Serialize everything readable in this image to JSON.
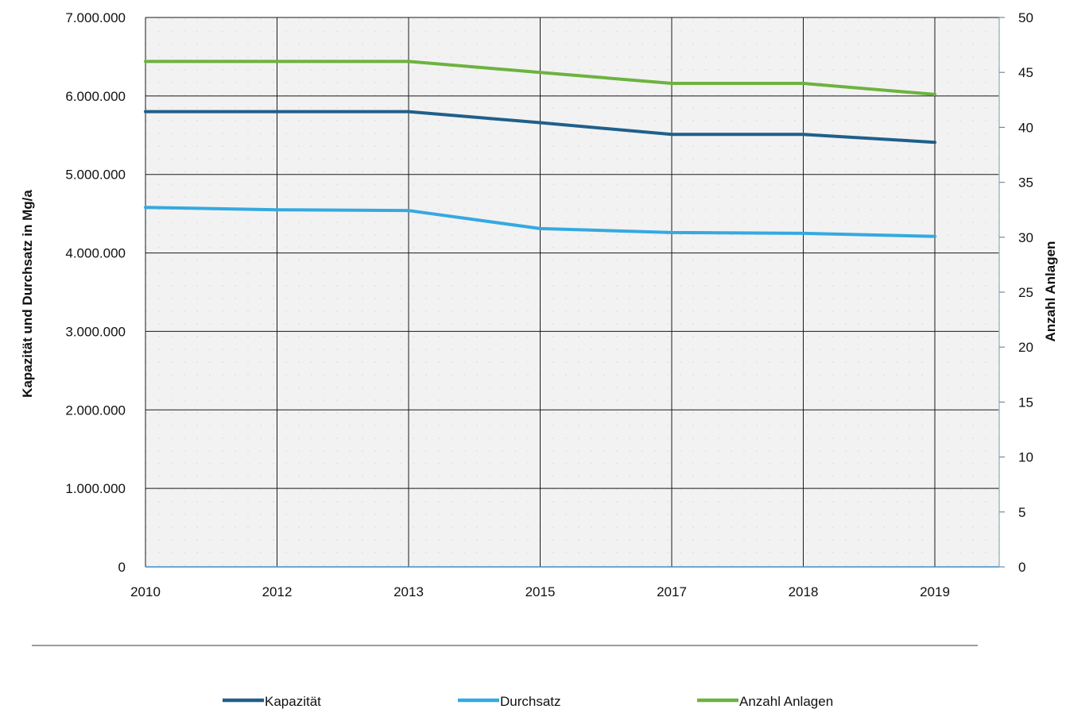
{
  "chart_data": {
    "type": "line",
    "categories": [
      "2010",
      "2012",
      "2013",
      "2015",
      "2017",
      "2018",
      "2019"
    ],
    "y_left": {
      "label": "Kapazität und Durchsatz in Mg/a",
      "range": [
        0,
        7000000
      ],
      "ticks": [
        0,
        1000000,
        2000000,
        3000000,
        4000000,
        5000000,
        6000000,
        7000000
      ],
      "tick_labels": [
        "0",
        "1.000.000",
        "2.000.000",
        "3.000.000",
        "4.000.000",
        "5.000.000",
        "6.000.000",
        "7.000.000"
      ]
    },
    "y_right": {
      "label": "Anzahl Anlagen",
      "range": [
        0,
        50
      ],
      "ticks": [
        0,
        5,
        10,
        15,
        20,
        25,
        30,
        35,
        40,
        45,
        50
      ],
      "tick_labels": [
        "0",
        "5",
        "10",
        "15",
        "20",
        "25",
        "30",
        "35",
        "40",
        "45",
        "50"
      ]
    },
    "series": [
      {
        "name": "Kapazität",
        "axis": "left",
        "color": "#1f5f8b",
        "values": [
          5800000,
          5800000,
          5800000,
          5660000,
          5510000,
          5510000,
          5410000
        ]
      },
      {
        "name": "Durchsatz",
        "axis": "left",
        "color": "#35a9e0",
        "values": [
          4580000,
          4550000,
          4540000,
          4310000,
          4260000,
          4250000,
          4210000
        ]
      },
      {
        "name": "Anzahl Anlagen",
        "axis": "right",
        "color": "#6cb33f",
        "values": [
          46,
          46,
          46,
          45,
          44,
          44,
          43
        ]
      }
    ],
    "grid": true,
    "legend_position": "bottom"
  }
}
